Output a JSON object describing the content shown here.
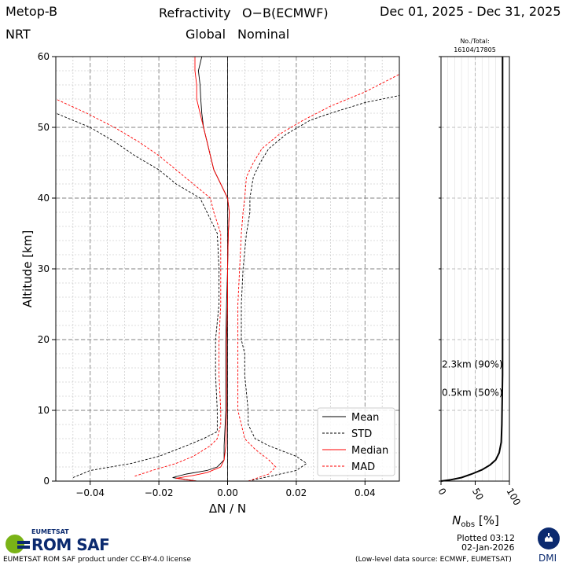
{
  "header": {
    "satellite": "Metop-B",
    "mode": "NRT",
    "title_left": "Refractivity",
    "title_right": "O−B(ECMWF)",
    "subtitle_left": "Global",
    "subtitle_right": "Nominal",
    "date_range": "Dec 01, 2025 - Dec 31, 2025"
  },
  "footer": {
    "org_label": "EUMETSAT",
    "logo_text": "ROM SAF",
    "license": "EUMETSAT ROM SAF product under CC-BY-4.0 license",
    "plotted_line1": "Plotted 03:12",
    "plotted_line2": "02-Jan-2026",
    "source": "(Low-level data source: ECMWF, EUMETSAT)",
    "dmi_label": "DMI"
  },
  "colors": {
    "black": "#000000",
    "red": "#ff0000",
    "grid_major": "#888888",
    "grid_minor": "#b0b0b0",
    "logo_green": "#7ab317",
    "logo_blue": "#0b2a6f"
  },
  "chart_data": [
    {
      "type": "line",
      "xlabel": "ΔN / N",
      "ylabel": "Altitude [km]",
      "xlim": [
        -0.05,
        0.05
      ],
      "ylim": [
        0,
        60
      ],
      "x_ticks": [
        -0.04,
        -0.02,
        0.0,
        0.02,
        0.04
      ],
      "x_tick_labels": [
        "−0.04",
        "−0.02",
        "0.00",
        "0.02",
        "0.04"
      ],
      "y_ticks": [
        0,
        10,
        20,
        30,
        40,
        50,
        60
      ],
      "y_tick_labels": [
        "0",
        "10",
        "20",
        "30",
        "40",
        "50",
        "60"
      ],
      "grid": true,
      "legend_position": "lower-right",
      "series": [
        {
          "name": "Mean",
          "color": "#000000",
          "dash": "solid",
          "points": [
            [
              -0.009,
              0.0
            ],
            [
              -0.016,
              0.5
            ],
            [
              -0.012,
              1.0
            ],
            [
              -0.006,
              1.5
            ],
            [
              -0.003,
              2.0
            ],
            [
              -0.001,
              3.0
            ],
            [
              -0.001,
              5
            ],
            [
              -0.0005,
              10
            ],
            [
              -0.0005,
              15
            ],
            [
              -0.0005,
              20
            ],
            [
              -0.0003,
              25
            ],
            [
              0.0,
              30
            ],
            [
              0.0002,
              35
            ],
            [
              0.0005,
              38
            ],
            [
              0.0,
              40
            ],
            [
              -0.002,
              42
            ],
            [
              -0.004,
              44
            ],
            [
              -0.005,
              46
            ],
            [
              -0.006,
              48
            ],
            [
              -0.007,
              50
            ],
            [
              -0.0075,
              52
            ],
            [
              -0.0078,
              54
            ],
            [
              -0.008,
              56
            ],
            [
              -0.0085,
              58
            ],
            [
              -0.0075,
              60
            ]
          ]
        },
        {
          "name": "STD",
          "color": "#000000",
          "dash": "dashed",
          "points": [
            [
              -0.045,
              0.5
            ],
            [
              -0.04,
              1.5
            ],
            [
              -0.028,
              2.5
            ],
            [
              -0.02,
              3.5
            ],
            [
              -0.012,
              5
            ],
            [
              -0.007,
              6
            ],
            [
              -0.003,
              7
            ],
            [
              -0.003,
              10
            ],
            [
              -0.0035,
              15
            ],
            [
              -0.0035,
              20
            ],
            [
              -0.0025,
              25
            ],
            [
              -0.0025,
              30
            ],
            [
              -0.003,
              35
            ],
            [
              -0.006,
              38
            ],
            [
              -0.008,
              40
            ],
            [
              -0.015,
              42
            ],
            [
              -0.02,
              44
            ],
            [
              -0.027,
              46
            ],
            [
              -0.033,
              48
            ],
            [
              -0.04,
              50
            ],
            [
              -0.05,
              52
            ]
          ],
          "right_points": [
            [
              0.006,
              0.0
            ],
            [
              0.02,
              1.5
            ],
            [
              0.023,
              2.5
            ],
            [
              0.02,
              3.5
            ],
            [
              0.012,
              5
            ],
            [
              0.008,
              6
            ],
            [
              0.006,
              8
            ],
            [
              0.006,
              10
            ],
            [
              0.005,
              15
            ],
            [
              0.005,
              18
            ],
            [
              0.004,
              20
            ],
            [
              0.004,
              25
            ],
            [
              0.0045,
              30
            ],
            [
              0.0055,
              35
            ],
            [
              0.0065,
              38
            ],
            [
              0.0065,
              40
            ],
            [
              0.0075,
              43
            ],
            [
              0.0095,
              45
            ],
            [
              0.012,
              47
            ],
            [
              0.017,
              49
            ],
            [
              0.024,
              51
            ],
            [
              0.03,
              52
            ],
            [
              0.04,
              53.5
            ],
            [
              0.05,
              54.5
            ]
          ]
        },
        {
          "name": "Median",
          "color": "#ff0000",
          "dash": "solid",
          "points": [
            [
              -0.009,
              0.0
            ],
            [
              -0.015,
              0.4
            ],
            [
              -0.01,
              0.8
            ],
            [
              -0.006,
              1.2
            ],
            [
              -0.002,
              2.0
            ],
            [
              -0.001,
              3.0
            ],
            [
              -0.0005,
              5
            ],
            [
              -0.0003,
              10
            ],
            [
              -0.0003,
              15
            ],
            [
              -0.0003,
              20
            ],
            [
              0.0,
              25
            ],
            [
              0.0,
              30
            ],
            [
              0.0002,
              35
            ],
            [
              0.0005,
              38
            ],
            [
              0.0,
              40
            ],
            [
              -0.002,
              42
            ],
            [
              -0.004,
              44
            ],
            [
              -0.005,
              46
            ],
            [
              -0.006,
              48
            ],
            [
              -0.007,
              50
            ],
            [
              -0.008,
              52
            ],
            [
              -0.009,
              54
            ],
            [
              -0.009,
              56
            ],
            [
              -0.0095,
              58
            ],
            [
              -0.0095,
              60
            ]
          ]
        },
        {
          "name": "MAD",
          "color": "#ff0000",
          "dash": "dashed",
          "points": [
            [
              -0.027,
              0.7
            ],
            [
              -0.022,
              1.5
            ],
            [
              -0.015,
              2.5
            ],
            [
              -0.01,
              3.5
            ],
            [
              -0.005,
              5
            ],
            [
              -0.003,
              6
            ],
            [
              -0.002,
              8
            ],
            [
              -0.002,
              10
            ],
            [
              -0.0025,
              15
            ],
            [
              -0.0025,
              20
            ],
            [
              -0.002,
              25
            ],
            [
              -0.002,
              30
            ],
            [
              -0.002,
              35
            ],
            [
              -0.004,
              38
            ],
            [
              -0.005,
              40
            ],
            [
              -0.01,
              42
            ],
            [
              -0.015,
              44
            ],
            [
              -0.02,
              46
            ],
            [
              -0.026,
              48
            ],
            [
              -0.033,
              50
            ],
            [
              -0.041,
              52
            ],
            [
              -0.05,
              54
            ]
          ],
          "right_points": [
            [
              0.006,
              0.0
            ],
            [
              0.012,
              1.0
            ],
            [
              0.014,
              2.0
            ],
            [
              0.012,
              3.0
            ],
            [
              0.008,
              4.5
            ],
            [
              0.005,
              6
            ],
            [
              0.004,
              8
            ],
            [
              0.003,
              10
            ],
            [
              0.003,
              15
            ],
            [
              0.003,
              20
            ],
            [
              0.003,
              25
            ],
            [
              0.0035,
              30
            ],
            [
              0.004,
              35
            ],
            [
              0.0045,
              38
            ],
            [
              0.005,
              40
            ],
            [
              0.0055,
              43
            ],
            [
              0.0075,
              45
            ],
            [
              0.01,
              47
            ],
            [
              0.015,
              49
            ],
            [
              0.022,
              51
            ],
            [
              0.03,
              53
            ],
            [
              0.04,
              55
            ],
            [
              0.05,
              57.5
            ]
          ]
        }
      ]
    },
    {
      "type": "line",
      "xlabel": "N_obs [%]",
      "xlim": [
        0,
        100
      ],
      "ylim": [
        0,
        60
      ],
      "x_ticks": [
        0,
        50,
        100
      ],
      "x_tick_labels": [
        "0",
        "50",
        "100"
      ],
      "header_label": "No./Total:",
      "header_value": "16104/17805",
      "annotations": [
        {
          "text": "2.3km  (90%)",
          "altitude": 16.5
        },
        {
          "text": "0.5km  (50%)",
          "altitude": 12.5
        }
      ],
      "series": [
        {
          "name": "N_obs",
          "color": "#000000",
          "points": [
            [
              0,
              0.0
            ],
            [
              15,
              0.2
            ],
            [
              30,
              0.5
            ],
            [
              45,
              1.0
            ],
            [
              60,
              1.6
            ],
            [
              72,
              2.3
            ],
            [
              80,
              3.0
            ],
            [
              85,
              4.0
            ],
            [
              88,
              5.5
            ],
            [
              89,
              8
            ],
            [
              90,
              15
            ],
            [
              90,
              30
            ],
            [
              90,
              45
            ],
            [
              90,
              60
            ]
          ]
        }
      ]
    }
  ]
}
